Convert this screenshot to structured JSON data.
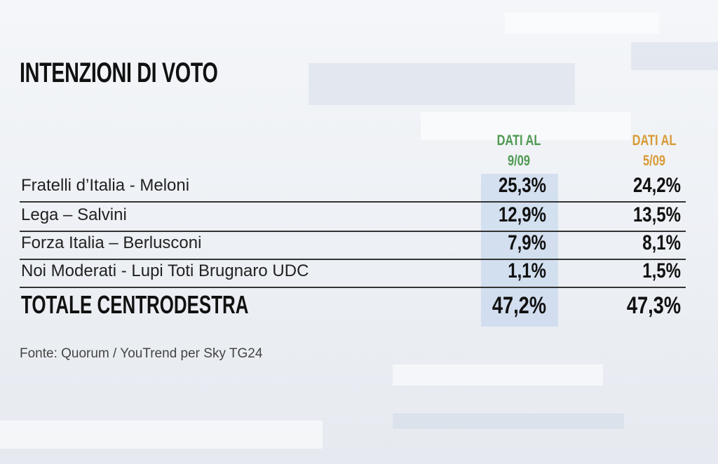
{
  "title": "INTENZIONI DI VOTO",
  "columns": [
    {
      "line1": "DATI AL",
      "line2": "9/09"
    },
    {
      "line1": "DATI AL",
      "line2": "5/09"
    }
  ],
  "rows": [
    {
      "label": "Fratelli d’Italia - Meloni",
      "values": [
        "25,3%",
        "24,2%"
      ]
    },
    {
      "label": "Lega – Salvini",
      "values": [
        "12,9%",
        "13,5%"
      ]
    },
    {
      "label": "Forza Italia – Berlusconi",
      "values": [
        "7,9%",
        "8,1%"
      ]
    },
    {
      "label": "Noi Moderati - Lupi Toti Brugnaro UDC",
      "values": [
        "1,1%",
        "1,5%"
      ]
    }
  ],
  "total": {
    "label": "TOTALE CENTRODESTRA",
    "values": [
      "47,2%",
      "47,3%"
    ]
  },
  "source": "Fonte: Quorum / YouTrend per Sky TG24"
}
